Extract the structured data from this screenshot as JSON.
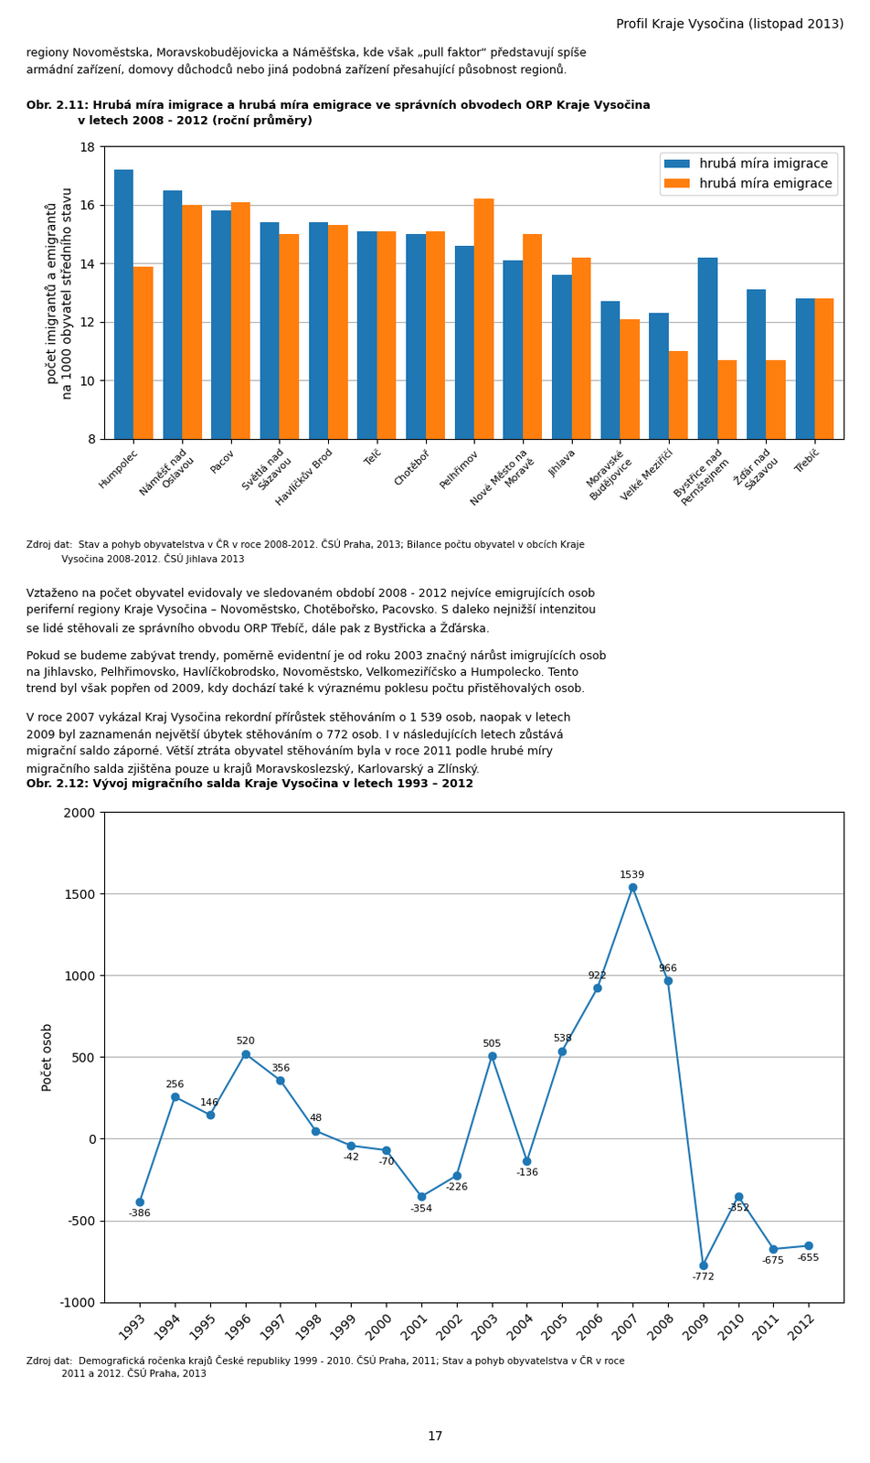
{
  "header": "Profil Kraje Vysočina (listopad 2013)",
  "intro": "regiony Novoměstska, Moravskobudějovicka a Náměšťska, kde však „pull faktor“ představují spíše\narmádní zařízení, domovy důchodců nebo jiná podobná zařízení přesahující působnost regionů.",
  "body_texts": [
    "Vztaženo na počet obyvatel evidovaly ve sledovaném období 2008 - 2012 nejvíce emigrujících osob\nperiferní regiony Kraje Vysočina – Novoměstsko, Chotěbořsko, Pacovsko. S daleko nejnižší intenzitou\nse lidé stěhovali ze správního obvodu ORP Třebíč, dále pak z Bystřicka a Žďárska.",
    "Pokud se budeme zabývat trendy, poměrně evidentní je od roku 2003 značný nárůst imigrujících osob\nna Jihlavsko, Pelhřimovsko, Havlíčkobrodsko, Novoměstsko, Velkomeziříčsko a Humpolecko. Tento\ntrend byl však popřen od 2009, kdy dochází také k výraznému poklesu počtu přistěhovalých osob.",
    "V roce 2007 vykázal Kraj Vysočina rekordní přírůstek stěhováním o 1 539 osob, naopak v letech\n2009 byl zaznamenán největší úbytek stěhováním o 772 osob. I v následujících letech zůstává\nmigrační saldo záporné. Větší ztráta obyvatel stěhováním byla v roce 2011 podle hrubé míry\nmigračního salda zjištěna pouze u krajů Moravskoslezský, Karlovarský a Zlínský."
  ],
  "page_number": "17",
  "chart_data": [
    {
      "type": "bar",
      "title": "Obr. 2.11: Hrubá míra imigrace a hrubá míra emigrace ve správních obvodech ORP Kraje Vysočina\n             v letech 2008 - 2012 (roční průměry)",
      "categories": [
        "Humpolec",
        "Náměšť nad\nOslavou",
        "Pacov",
        "Světlá nad\nSázavou",
        "Havlíčkův Brod",
        "Telč",
        "Chotěboř",
        "Pelhřimov",
        "Nové Město na\nMoravě",
        "Jihlava",
        "Moravské\nBudějovice",
        "Velké Meziříčí",
        "Bystřice nad\nPernštejnem",
        "Žďár nad\nSázavou",
        "Třebíč"
      ],
      "series": [
        {
          "name": "hrubá míra imigrace",
          "values": [
            17.2,
            16.5,
            15.8,
            15.4,
            15.4,
            15.1,
            15.0,
            14.6,
            14.1,
            13.6,
            12.7,
            12.3,
            14.2,
            13.1,
            12.8
          ]
        },
        {
          "name": "hrubá míra emigrace",
          "values": [
            13.9,
            16.0,
            16.1,
            15.0,
            15.3,
            15.1,
            15.1,
            16.2,
            15.0,
            14.2,
            12.1,
            11.0,
            10.7,
            10.7,
            12.8
          ]
        }
      ],
      "ylabel": "počet imigrantů a emigrantů\nna 1000 obyvatel středního stavu",
      "ylim": [
        8,
        18
      ],
      "yticks": [
        8,
        10,
        12,
        14,
        16,
        18
      ],
      "grid": "y",
      "legend": "upper right",
      "source": "Zdroj dat:  Stav a pohyb obyvatelstva v ČR v roce 2008-2012. ČSÚ Praha, 2013; Bilance počtu obyvatel v obcích Kraje\n            Vysočina 2008-2012. ČSÚ Jihlava 2013"
    },
    {
      "type": "line",
      "title": "Obr. 2.12: Vývoj migračního salda Kraje Vysočina v letech 1993 – 2012",
      "x": [
        1993,
        1994,
        1995,
        1996,
        1997,
        1998,
        1999,
        2000,
        2001,
        2002,
        2003,
        2004,
        2005,
        2006,
        2007,
        2008,
        2009,
        2010,
        2011,
        2012
      ],
      "values": [
        -386,
        256,
        146,
        520,
        356,
        48,
        -42,
        -70,
        -354,
        -226,
        505,
        -136,
        538,
        922,
        1539,
        966,
        -772,
        -352,
        -675,
        -655
      ],
      "marker": "o",
      "data_labels": true,
      "ylabel": "Počet osob",
      "xlim": [
        1992,
        2013
      ],
      "xticks": [
        1993,
        1994,
        1995,
        1996,
        1997,
        1998,
        1999,
        2000,
        2001,
        2002,
        2003,
        2004,
        2005,
        2006,
        2007,
        2008,
        2009,
        2010,
        2011,
        2012
      ],
      "ylim": [
        -1000,
        2000
      ],
      "yticks": [
        -1000,
        -500,
        0,
        500,
        1000,
        1500,
        2000
      ],
      "grid": "y",
      "source": "Zdroj dat:  Demografická ročenka krajů České republiky 1999 - 2010. ČSÚ Praha, 2011; Stav a pohyb obyvatelstva v ČR v roce\n            2011 a 2012. ČSÚ Praha, 2013"
    }
  ]
}
